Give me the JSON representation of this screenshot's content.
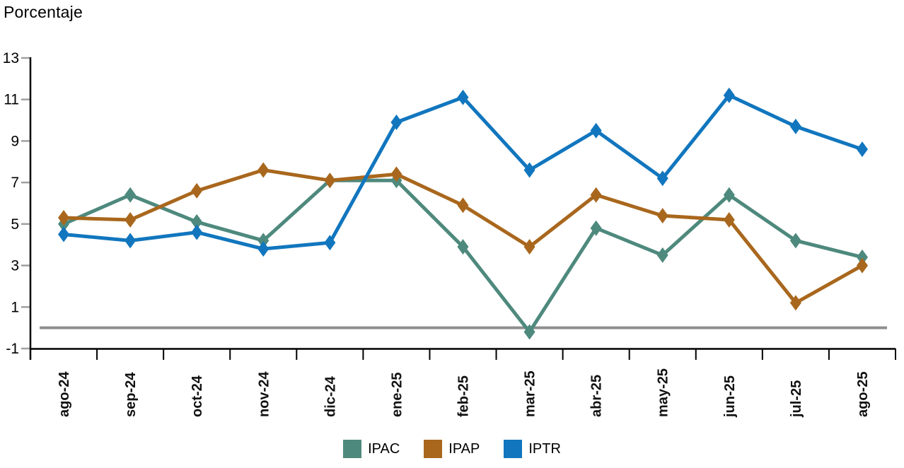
{
  "chart_data": {
    "type": "line",
    "title": "Porcentaje",
    "xlabel": "",
    "ylabel": "Porcentaje",
    "categories": [
      "ago-24",
      "sep-24",
      "oct-24",
      "nov-24",
      "dic-24",
      "ene-25",
      "feb-25",
      "mar-25",
      "abr-25",
      "may-25",
      "jun-25",
      "jul-25",
      "ago-25"
    ],
    "series": [
      {
        "name": "IPAC",
        "color": "#4E897D",
        "values": [
          5.0,
          6.4,
          5.1,
          4.2,
          7.1,
          7.1,
          3.9,
          -0.2,
          4.8,
          3.5,
          6.4,
          4.2,
          3.4
        ]
      },
      {
        "name": "IPAP",
        "color": "#A9671D",
        "values": [
          5.3,
          5.2,
          6.6,
          7.6,
          7.1,
          7.4,
          5.9,
          3.9,
          6.4,
          5.4,
          5.2,
          1.2,
          3.0
        ]
      },
      {
        "name": "IPTR",
        "color": "#1176BE",
        "values": [
          4.5,
          4.2,
          4.6,
          3.8,
          4.1,
          9.9,
          11.1,
          7.6,
          9.5,
          7.2,
          11.2,
          9.7,
          8.6
        ]
      }
    ],
    "ylim": [
      -1,
      13
    ],
    "yticks": [
      -1,
      1,
      3,
      5,
      7,
      9,
      11,
      13
    ],
    "marker": "diamond",
    "grid": false,
    "legend_position": "bottom",
    "zero_line": {
      "value": 0,
      "color": "#8F8F8F"
    },
    "axis_color": "#000000",
    "tick_color": "#A0A0A0"
  }
}
